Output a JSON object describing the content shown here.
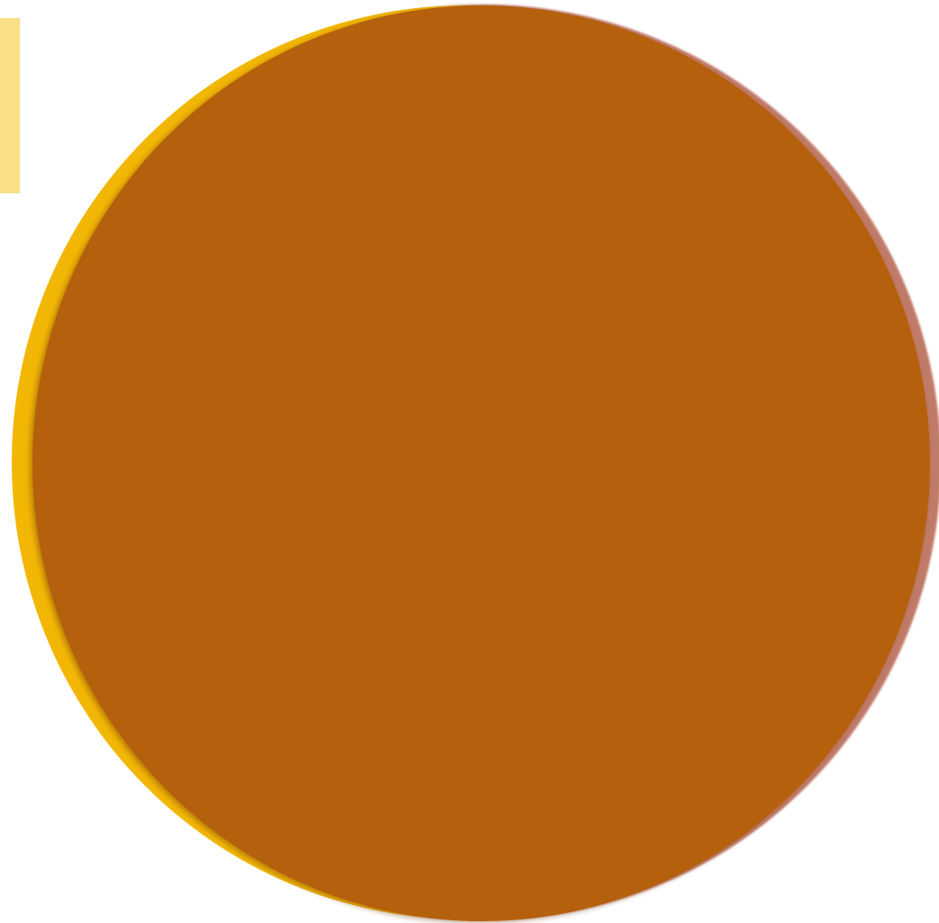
{
  "colors": {
    "background": "#ffffff",
    "side_tab": "#fce087",
    "disc_back": "#c07a68",
    "disc_left": "#f2b705",
    "disc_front": "#b5600c"
  },
  "layers": [
    {
      "name": "disc-back",
      "color_key": "disc_back"
    },
    {
      "name": "disc-left",
      "color_key": "disc_left"
    },
    {
      "name": "disc-front",
      "color_key": "disc_front"
    }
  ]
}
